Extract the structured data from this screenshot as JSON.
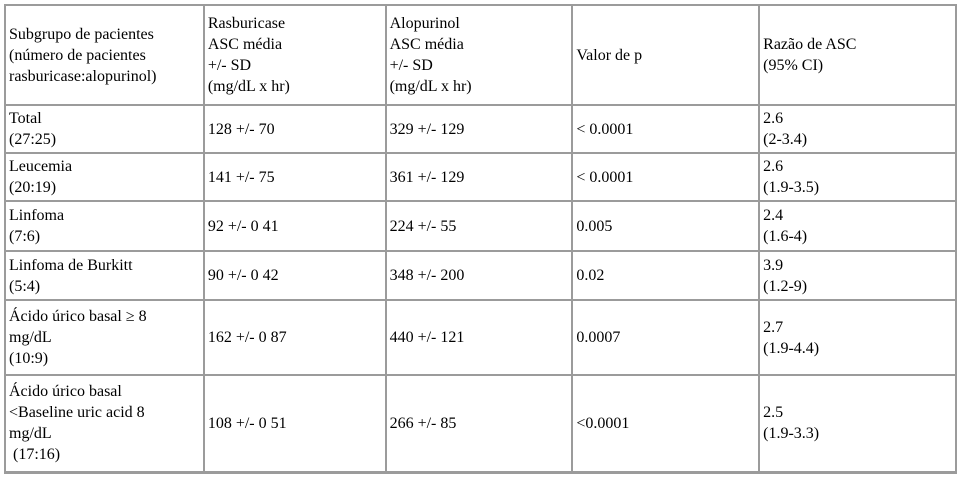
{
  "table": {
    "headers": [
      "Subgrupo de pacientes\n(número de pacientes\nrasburicase:alopurinol)",
      "Rasburicase\nASC média\n+/- SD\n(mg/dL x hr)",
      "Alopurinol\nASC média\n+/- SD\n(mg/dL x hr)",
      "Valor de p",
      "Razão de ASC\n(95% CI)"
    ],
    "rows": [
      [
        "Total\n(27:25)",
        "128 +/- 70",
        "329 +/- 129",
        "< 0.0001",
        "2.6\n(2-3.4)"
      ],
      [
        "Leucemia\n(20:19)",
        "141 +/- 75",
        "361 +/- 129",
        "< 0.0001",
        "2.6\n(1.9-3.5)"
      ],
      [
        "Linfoma\n(7:6)",
        "92 +/- 0 41",
        "224 +/- 55",
        "0.005",
        "2.4\n(1.6-4)"
      ],
      [
        "Linfoma de Burkitt\n(5:4)",
        "90 +/- 0 42",
        "348 +/- 200",
        "0.02",
        "3.9\n(1.2-9)"
      ],
      [
        "Ácido úrico basal ≥ 8\nmg/dL\n(10:9)",
        "162 +/- 0 87",
        "440 +/- 121",
        "0.0007",
        "2.7\n(1.9-4.4)"
      ],
      [
        "Ácido úrico basal\n<Baseline uric acid 8\nmg/dL\n (17:16)",
        "108 +/- 0 51",
        "266 +/- 85",
        "<0.0001",
        "2.5\n(1.9-3.3)"
      ]
    ],
    "colors": {
      "border": "#9b9b9b",
      "text": "#000000",
      "background": "#ffffff"
    }
  }
}
